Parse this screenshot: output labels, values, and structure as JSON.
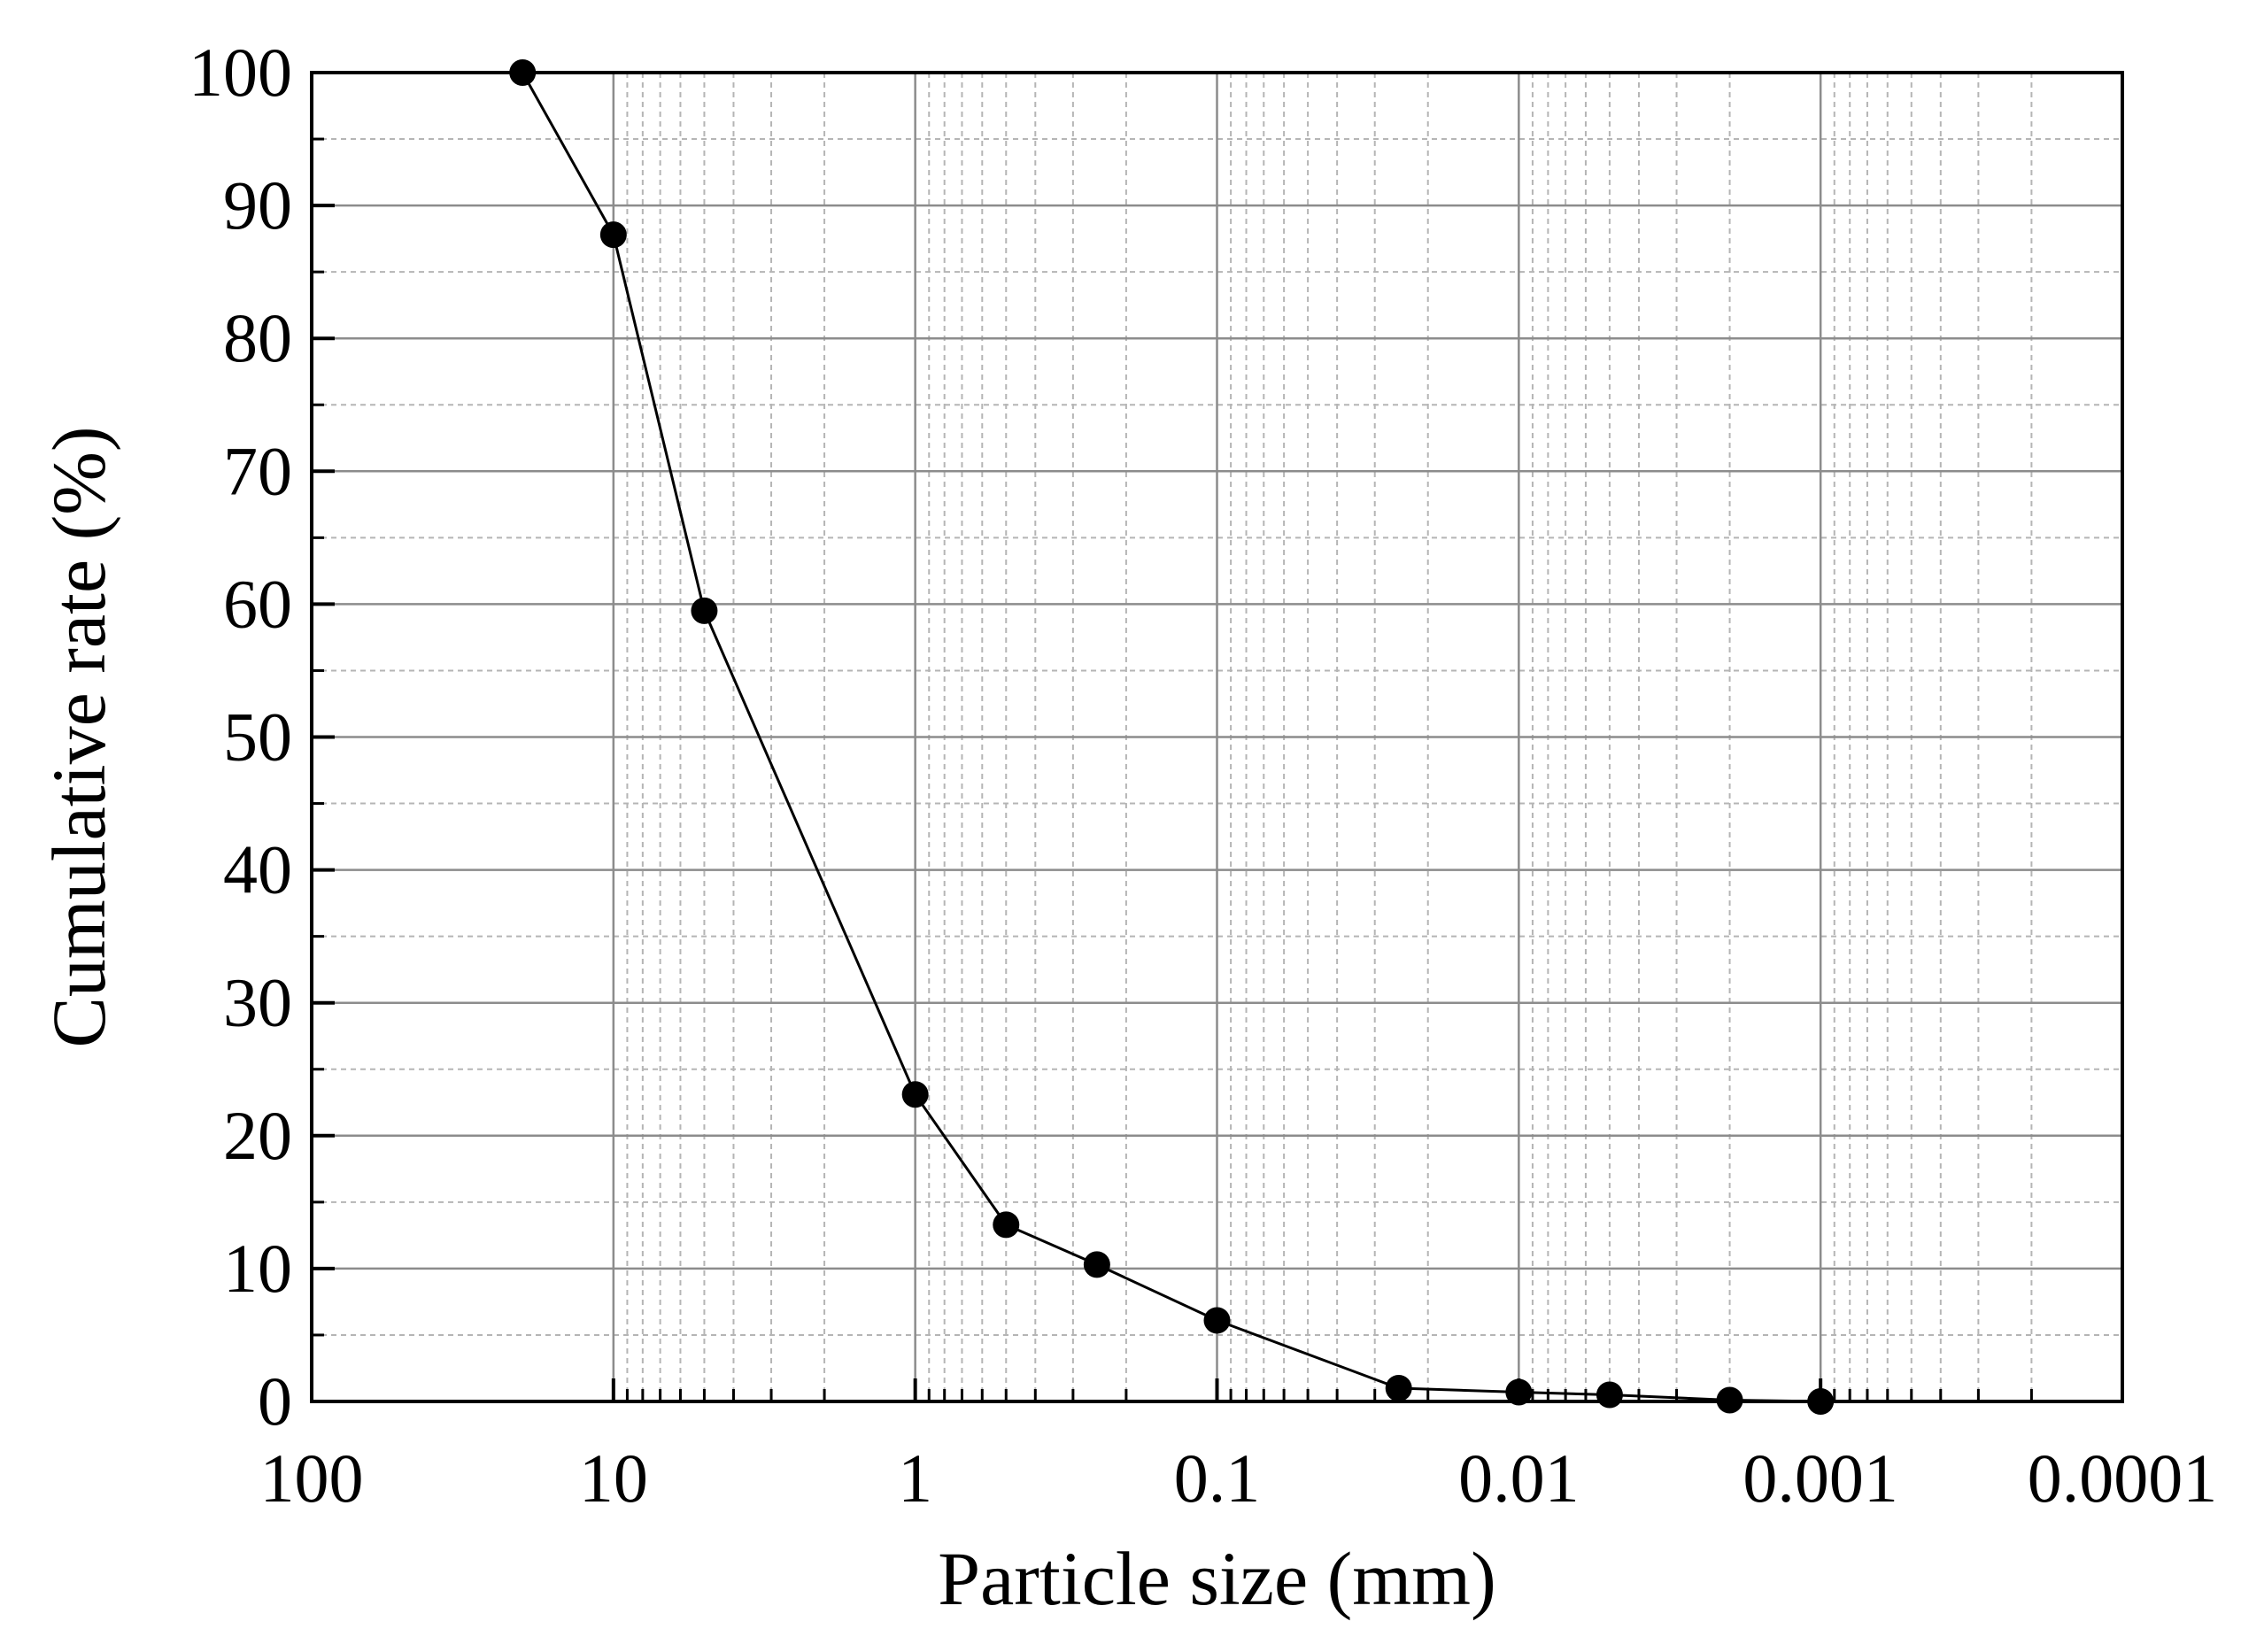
{
  "chart_data": {
    "type": "line",
    "title": "",
    "xlabel": "Particle size (mm)",
    "ylabel": "Cumulative rate (%)",
    "x_scale": "log",
    "x_reversed": true,
    "xlim": [
      100,
      0.0001
    ],
    "ylim": [
      0,
      100
    ],
    "grid": true,
    "legend": "none",
    "x_ticks": [
      100,
      10,
      1,
      0.1,
      0.01,
      0.001,
      0.0001
    ],
    "x_tick_labels": [
      "100",
      "10",
      "1",
      "0.1",
      "0.01",
      "0.001",
      "0.0001"
    ],
    "y_ticks": [
      0,
      10,
      20,
      30,
      40,
      50,
      60,
      70,
      80,
      90,
      100
    ],
    "y_tick_labels": [
      "0",
      "10",
      "20",
      "30",
      "40",
      "50",
      "60",
      "70",
      "80",
      "90",
      "100"
    ],
    "series": [
      {
        "name": "Cumulative rate",
        "color": "#000000",
        "marker": "circle",
        "x": [
          20,
          10,
          5,
          1,
          0.5,
          0.25,
          0.1,
          0.025,
          0.01,
          0.005,
          0.002,
          0.001
        ],
        "y": [
          100,
          87.8,
          59.5,
          23.1,
          13.3,
          10.3,
          6.1,
          1.0,
          0.7,
          0.5,
          0.1,
          0.0
        ]
      }
    ]
  }
}
